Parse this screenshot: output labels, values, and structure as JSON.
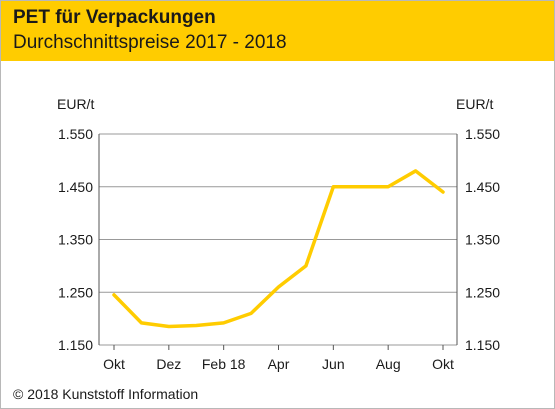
{
  "header": {
    "title": "PET für Verpackungen",
    "subtitle": "Durchschnittspreise 2017 - 2018"
  },
  "footer": {
    "copyright": "© 2018 Kunststoff Information"
  },
  "colors": {
    "accent": "#ffcc00",
    "line": "#ffcc00",
    "grid": "#999999",
    "axis": "#555555"
  },
  "chart_data": {
    "type": "line",
    "title": "PET für Verpackungen",
    "subtitle": "Durchschnittspreise 2017 - 2018",
    "ylabel_left": "EUR/t",
    "ylabel_right": "EUR/t",
    "ylim": [
      1150,
      1550
    ],
    "yticks": [
      1150,
      1250,
      1350,
      1450,
      1550
    ],
    "ytick_labels": [
      "1.150",
      "1.250",
      "1.350",
      "1.450",
      "1.550"
    ],
    "xtick_labels": [
      "Okt",
      "Dez",
      "Feb 18",
      "Apr",
      "Jun",
      "Aug",
      "Okt"
    ],
    "x": [
      "Okt 17",
      "Nov 17",
      "Dez 17",
      "Jan 18",
      "Feb 18",
      "Mär 18",
      "Apr 18",
      "Mai 18",
      "Jun 18",
      "Jul 18",
      "Aug 18",
      "Sep 18",
      "Okt 18"
    ],
    "series": [
      {
        "values": [
          1245,
          1192,
          1185,
          1187,
          1192,
          1210,
          1260,
          1300,
          1450,
          1450,
          1450,
          1480,
          1440
        ]
      }
    ],
    "grid": true
  }
}
